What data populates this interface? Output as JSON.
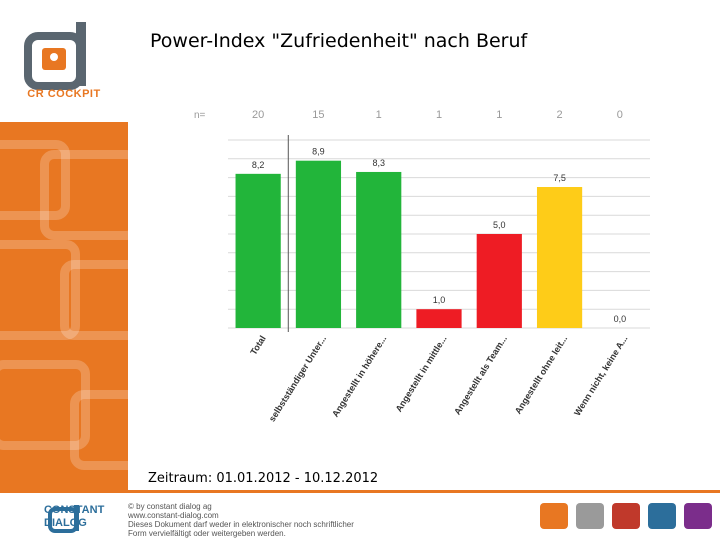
{
  "title": "Power-Index \"Zufriedenheit\" nach Beruf",
  "timeframe": "Zeitraum: 01.01.2012 - 10.12.2012",
  "logo_top": {
    "text": "CR COCKPIT"
  },
  "footer": {
    "brand_line1": "CONSTANT",
    "brand_line2": "DIALOG",
    "copyright_lines": [
      "© by constant dialog ag",
      "www.constant-dialog.com",
      "Dieses Dokument darf weder in elektronischer noch schriftlicher",
      "Form vervielfältigt oder weitergeben werden."
    ],
    "product_icons": [
      {
        "name": "cr-cockpit-icon",
        "color": "#e87722"
      },
      {
        "name": "product-icon-2",
        "color": "#9a9a9a"
      },
      {
        "name": "product-icon-3",
        "color": "#c0392b"
      },
      {
        "name": "product-icon-4",
        "color": "#2c6e9b"
      },
      {
        "name": "product-icon-5",
        "color": "#7b2d8b"
      }
    ]
  },
  "chart_data": {
    "type": "bar",
    "n_label": "n=",
    "categories": [
      "Total",
      "selbstständiger Unter...",
      "Angestellt in höhere...",
      "Angestellt in mittle...",
      "Angestellt als Team...",
      "Angestellt ohne leit...",
      "Wenn nicht, keine A..."
    ],
    "n_values": [
      "20",
      "15",
      "1",
      "1",
      "1",
      "2",
      "0"
    ],
    "values": [
      8.2,
      8.9,
      8.3,
      1.0,
      5.0,
      7.5,
      0.0
    ],
    "value_labels": [
      "8,2",
      "8,9",
      "8,3",
      "1,0",
      "5,0",
      "7,5",
      "0,0"
    ],
    "colors": [
      "#22b53a",
      "#22b53a",
      "#22b53a",
      "#ee1c24",
      "#ee1c24",
      "#fecc18",
      "#fecc18"
    ],
    "ylim": [
      0,
      10
    ],
    "grid": true
  }
}
